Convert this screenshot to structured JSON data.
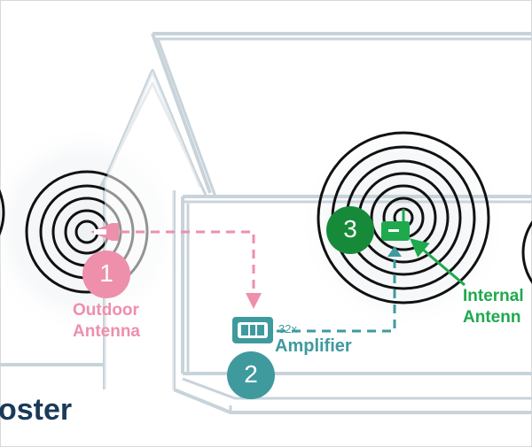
{
  "colors": {
    "outdoor": "#ee8fac",
    "amplifier": "#3f9a9e",
    "internal": "#1ea94d",
    "internal_dark": "#178a3a",
    "house_line": "#c8d3da",
    "brand": "#1a3a5a"
  },
  "steps": [
    {
      "number": "1",
      "label_line1": "Outdoor",
      "label_line2": "Antenna"
    },
    {
      "number": "2",
      "label": "Amplifier",
      "gain": "32x"
    },
    {
      "number": "3",
      "label_line1": "Internal",
      "label_line2": "Antenn"
    }
  ],
  "brand": {
    "text": "oster"
  },
  "icons": [
    "outdoor-antenna-icon",
    "amplifier-icon",
    "internal-antenna-icon",
    "signal-rings-icon"
  ]
}
